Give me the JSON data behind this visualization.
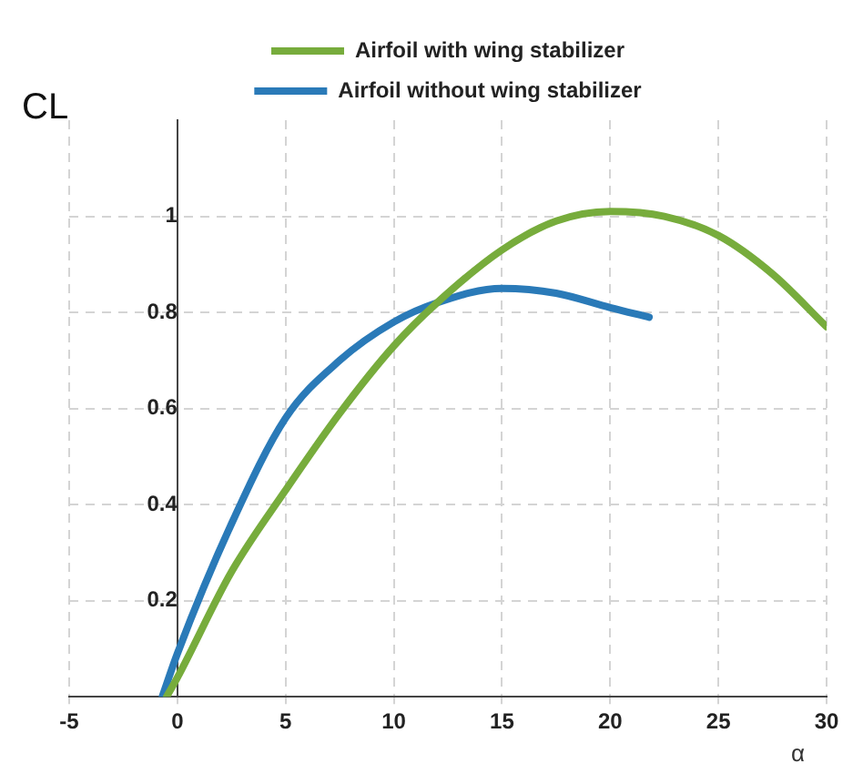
{
  "chart_data": {
    "type": "line",
    "xlabel": "α",
    "ylabel": "CL",
    "legend": "top",
    "grid": true,
    "line_style": "solid",
    "marker": "none",
    "xlim": [
      -5,
      30
    ],
    "xticks": [
      -5,
      0,
      5,
      10,
      15,
      20,
      25,
      30
    ],
    "ylim": [
      0,
      1.2
    ],
    "yticks": [
      0.2,
      0.4,
      0.6,
      0.8,
      1
    ],
    "series": [
      {
        "name": "Airfoil with wing stabilizer",
        "color": "#77ac3c",
        "x": [
          -0.5,
          0,
          2.5,
          5,
          7.5,
          10,
          12,
          15,
          17.5,
          20,
          22.5,
          25,
          27.5,
          30
        ],
        "values": [
          0,
          0.04,
          0.26,
          0.43,
          0.59,
          0.73,
          0.82,
          0.93,
          0.99,
          1.01,
          1,
          0.96,
          0.88,
          0.77
        ]
      },
      {
        "name": "Airfoil without wing stabilizer",
        "color": "#2a7ab8",
        "x": [
          -0.7,
          0,
          2.5,
          5,
          7.5,
          10,
          12,
          15,
          17.5,
          20,
          21.8
        ],
        "values": [
          0,
          0.09,
          0.36,
          0.58,
          0.7,
          0.78,
          0.82,
          0.85,
          0.84,
          0.81,
          0.79
        ]
      }
    ]
  }
}
